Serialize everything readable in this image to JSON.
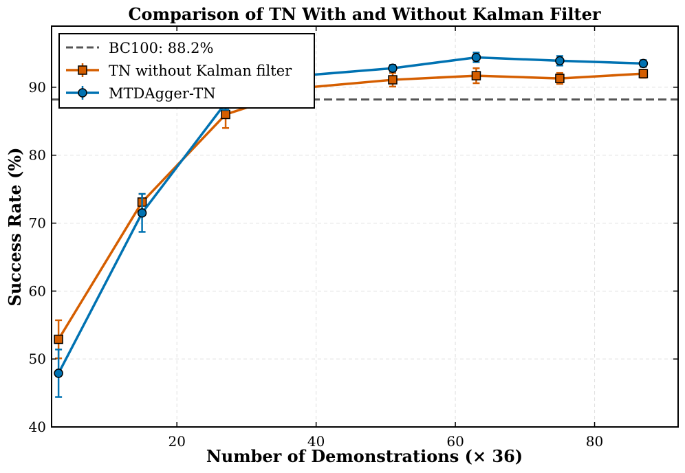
{
  "chart_data": {
    "type": "line",
    "title": "Comparison of TN With and Without Kalman Filter",
    "xlabel": "Number of Demonstrations (× 36)",
    "ylabel": "Success Rate (%)",
    "xlim": [
      2,
      92
    ],
    "ylim": [
      40,
      99
    ],
    "xticks": [
      20,
      40,
      60,
      80
    ],
    "yticks": [
      40,
      50,
      60,
      70,
      80,
      90
    ],
    "grid": true,
    "legend_position": "top-left",
    "reference_line": {
      "label": "BC100: 88.2%",
      "y": 88.2,
      "color": "#555555"
    },
    "series": [
      {
        "name": "TN without Kalman filter",
        "marker": "square",
        "color": "#d55e00",
        "x": [
          3,
          15,
          27,
          39,
          51,
          63,
          75,
          87
        ],
        "values": [
          52.9,
          73.1,
          86.0,
          90.0,
          91.1,
          91.7,
          91.3,
          92.0
        ],
        "errors": [
          2.8,
          1.2,
          2.0,
          0.8,
          1.0,
          1.1,
          0.8,
          0.6
        ]
      },
      {
        "name": "MTDAgger-TN",
        "marker": "circle",
        "color": "#0072b2",
        "x": [
          3,
          15,
          27,
          39,
          51,
          63,
          75,
          87
        ],
        "values": [
          47.9,
          71.5,
          87.7,
          91.8,
          92.8,
          94.4,
          93.9,
          93.5
        ],
        "errors": [
          3.5,
          2.8,
          1.0,
          0.6,
          0.5,
          0.7,
          0.7,
          0.5
        ]
      }
    ]
  }
}
